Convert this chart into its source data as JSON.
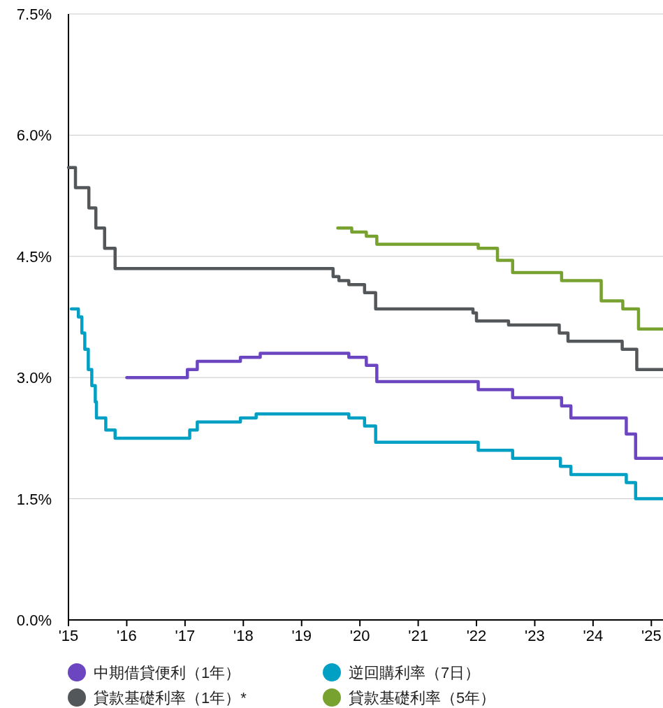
{
  "chart_data": {
    "type": "step",
    "xlim": [
      2015,
      2025.2
    ],
    "ylim": [
      0,
      7.5
    ],
    "xticks": [
      {
        "value": 2015,
        "label": "'15"
      },
      {
        "value": 2016,
        "label": "'16"
      },
      {
        "value": 2017,
        "label": "'17"
      },
      {
        "value": 2018,
        "label": "'18"
      },
      {
        "value": 2019,
        "label": "'19"
      },
      {
        "value": 2020,
        "label": "'20"
      },
      {
        "value": 2021,
        "label": "'21"
      },
      {
        "value": 2022,
        "label": "'22"
      },
      {
        "value": 2023,
        "label": "'23"
      },
      {
        "value": 2024,
        "label": "'24"
      },
      {
        "value": 2025,
        "label": "'25"
      }
    ],
    "yticks": [
      {
        "value": 0,
        "label": "0.0%"
      },
      {
        "value": 1.5,
        "label": "1.5%"
      },
      {
        "value": 3,
        "label": "3.0%"
      },
      {
        "value": 4.5,
        "label": "4.5%"
      },
      {
        "value": 6,
        "label": "6.0%"
      },
      {
        "value": 7.5,
        "label": "7.5%"
      }
    ],
    "grid": "y",
    "legend": "bottom",
    "marker": "none",
    "line_style": "solid",
    "series": [
      {
        "name": "中期借貸便利（1年）",
        "color": "#6c45c0",
        "x": [
          2016.0,
          2017.04,
          2017.21,
          2017.95,
          2018.29,
          2019.81,
          2020.11,
          2020.29,
          2022.03,
          2022.62,
          2023.46,
          2023.62,
          2024.57,
          2024.73,
          2025.2
        ],
        "values": [
          3.0,
          3.1,
          3.2,
          3.25,
          3.3,
          3.25,
          3.15,
          2.95,
          2.85,
          2.75,
          2.65,
          2.5,
          2.3,
          2.0,
          2.0
        ]
      },
      {
        "name": "逆回購利率（7日）",
        "color": "#00a0c4",
        "x": [
          2015.05,
          2015.17,
          2015.23,
          2015.28,
          2015.34,
          2015.4,
          2015.46,
          2015.48,
          2015.64,
          2015.8,
          2017.08,
          2017.21,
          2017.95,
          2018.22,
          2019.81,
          2020.08,
          2020.27,
          2022.03,
          2022.62,
          2023.44,
          2023.62,
          2024.57,
          2024.73,
          2025.2
        ],
        "values": [
          3.85,
          3.75,
          3.55,
          3.35,
          3.1,
          2.9,
          2.7,
          2.5,
          2.35,
          2.25,
          2.35,
          2.45,
          2.5,
          2.55,
          2.5,
          2.4,
          2.2,
          2.1,
          2.0,
          1.9,
          1.8,
          1.7,
          1.5,
          1.5
        ]
      },
      {
        "name": "貸款基礎利率（1年）*",
        "color": "#54575a",
        "x": [
          2015.0,
          2015.12,
          2015.35,
          2015.47,
          2015.62,
          2015.8,
          2019.54,
          2019.64,
          2019.81,
          2020.08,
          2020.27,
          2021.94,
          2022.0,
          2022.55,
          2023.42,
          2023.57,
          2024.5,
          2024.75,
          2025.2
        ],
        "values": [
          5.6,
          5.35,
          5.1,
          4.85,
          4.6,
          4.35,
          4.25,
          4.2,
          4.15,
          4.05,
          3.85,
          3.8,
          3.7,
          3.65,
          3.55,
          3.45,
          3.35,
          3.1,
          3.1
        ]
      },
      {
        "name": "貸款基礎利率（5年）",
        "color": "#78a22f",
        "x": [
          2019.62,
          2019.86,
          2020.11,
          2020.29,
          2022.03,
          2022.36,
          2022.62,
          2023.46,
          2024.14,
          2024.51,
          2024.78,
          2025.2
        ],
        "values": [
          4.85,
          4.8,
          4.75,
          4.65,
          4.6,
          4.45,
          4.3,
          4.2,
          3.95,
          3.85,
          3.6,
          3.6
        ]
      }
    ]
  }
}
